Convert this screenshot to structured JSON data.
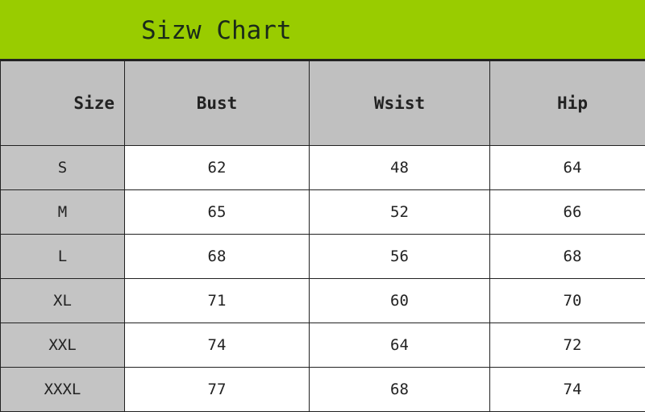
{
  "title": "Sizw Chart",
  "colors": {
    "banner": "#99cc00",
    "header": "#c0c0c0",
    "size_column": "#c4c4c4"
  },
  "chart_data": {
    "type": "table",
    "title": "Sizw Chart",
    "columns": [
      "Size",
      "Bust",
      "Wsist",
      "Hip"
    ],
    "rows": [
      [
        "S",
        "62",
        "48",
        "64"
      ],
      [
        "M",
        "65",
        "52",
        "66"
      ],
      [
        "L",
        "68",
        "56",
        "68"
      ],
      [
        "XL",
        "71",
        "60",
        "70"
      ],
      [
        "XXL",
        "74",
        "64",
        "72"
      ],
      [
        "XXXL",
        "77",
        "68",
        "74"
      ]
    ]
  }
}
